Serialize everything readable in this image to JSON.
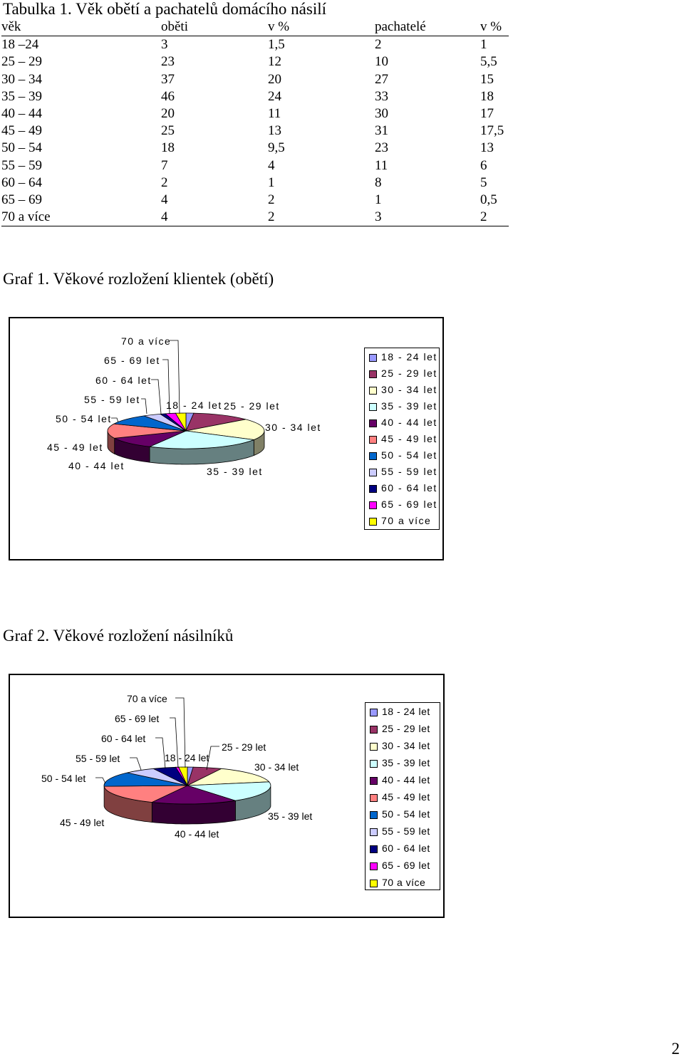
{
  "table": {
    "title": "Tabulka 1. Věk obětí a pachatelů domácího násilí",
    "headers": [
      "věk",
      "oběti",
      "v %",
      "pachatelé",
      "v  %"
    ],
    "rows": [
      [
        "18 –24",
        "3",
        "1,5",
        "2",
        "1"
      ],
      [
        "25 – 29",
        "23",
        "12",
        "10",
        "5,5"
      ],
      [
        "30 – 34",
        "37",
        "20",
        "27",
        "15"
      ],
      [
        "35 – 39",
        "46",
        "24",
        "33",
        "18"
      ],
      [
        "40 – 44",
        "20",
        "11",
        "30",
        "17"
      ],
      [
        "45 – 49",
        "25",
        "13",
        "31",
        "17,5"
      ],
      [
        "50 – 54",
        "18",
        "9,5",
        "23",
        "13"
      ],
      [
        "55 – 59",
        "7",
        "4",
        "11",
        "6"
      ],
      [
        "60 – 64",
        "2",
        "1",
        "8",
        "5"
      ],
      [
        "65 – 69",
        "4",
        "2",
        "1",
        "0,5"
      ],
      [
        "70 a více",
        "4",
        "2",
        "3",
        "2"
      ]
    ]
  },
  "legend_colors": [
    "#9999ff",
    "#993366",
    "#ffffcc",
    "#ccffff",
    "#660066",
    "#ff8080",
    "#0066cc",
    "#ccccff",
    "#000080",
    "#ff00ff",
    "#ffff00"
  ],
  "graf1": {
    "title": "Graf 1. Věkové rozložení  klientek (obětí)"
  },
  "graf2": {
    "title": "Graf 2. Věkové rozložení  násilníků"
  },
  "chart_data": [
    {
      "type": "pie",
      "title": "Graf 1. Věkové rozložení  klientek (obětí)",
      "labels": [
        "18 - 24 let",
        "25 - 29 let",
        "30 - 34 let",
        "35 - 39 let",
        "40 - 44 let",
        "45 - 49 let",
        "50 - 54 let",
        "55 - 59 let",
        "60 - 64 let",
        "65 - 69 let",
        "70 a více"
      ],
      "values": [
        3,
        23,
        37,
        46,
        20,
        25,
        18,
        7,
        2,
        4,
        4
      ],
      "legend_position": "right",
      "style": "3d"
    },
    {
      "type": "pie",
      "title": "Graf 2. Věkové rozložení  násilníků",
      "labels": [
        "18 - 24 let",
        "25 - 29 let",
        "30 - 34 let",
        "35 - 39 let",
        "40 - 44 let",
        "45 - 49 let",
        "50 - 54 let",
        "55 - 59 let",
        "60 - 64 let",
        "65 - 69 let",
        "70 a více"
      ],
      "values": [
        2,
        10,
        27,
        33,
        30,
        31,
        23,
        11,
        8,
        1,
        3
      ],
      "legend_position": "right",
      "style": "3d"
    }
  ],
  "page_number": "2"
}
